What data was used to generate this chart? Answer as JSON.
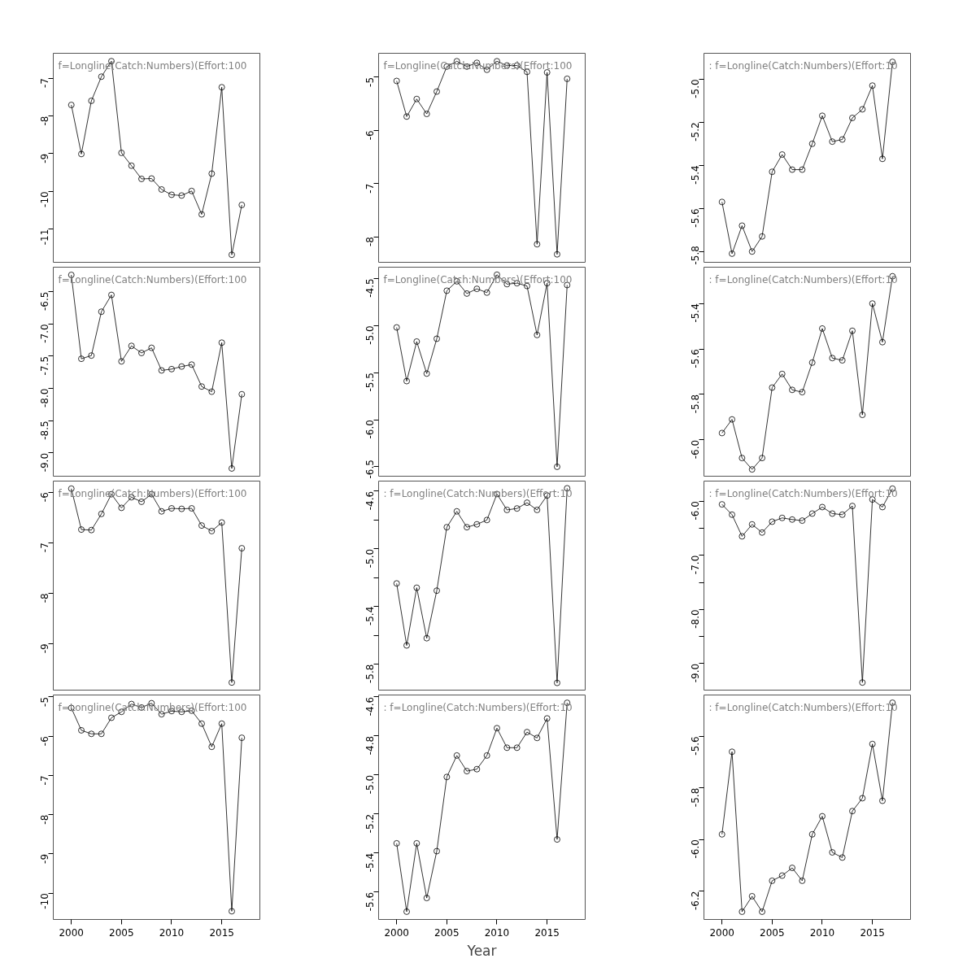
{
  "chart_data": [
    {
      "type": "line",
      "x": [
        2000,
        2001,
        2002,
        2003,
        2004,
        2005,
        2006,
        2007,
        2008,
        2009,
        2010,
        2011,
        2012,
        2013,
        2014,
        2015,
        2016,
        2017
      ],
      "series": [
        {
          "color": "#000000",
          "values": [
            -7.71,
            -9.01,
            -7.6,
            -6.96,
            -6.55,
            -8.98,
            -9.32,
            -9.67,
            -9.66,
            -9.95,
            -10.09,
            -10.11,
            -9.99,
            -10.61,
            -9.53,
            -7.24,
            -11.68,
            -10.36
          ]
        }
      ],
      "marker": "circle",
      "xlim": [
        1998.2,
        2018.8
      ],
      "ylim": [
        -11.88,
        -6.34
      ],
      "xticks": [
        2000,
        2005,
        2010,
        2015
      ],
      "yticks": [
        -7,
        -8,
        -9,
        -10,
        -11
      ],
      "tick_labels": "y",
      "annotations": [
        "f=Longline(Catch:Numbers)(Effort:100"
      ]
    },
    {
      "type": "line",
      "x": [
        2000,
        2001,
        2002,
        2003,
        2004,
        2005,
        2006,
        2007,
        2008,
        2009,
        2010,
        2011,
        2012,
        2013,
        2014,
        2015,
        2016,
        2017
      ],
      "series": [
        {
          "color": "#000000",
          "values": [
            -5.07,
            -5.74,
            -5.41,
            -5.69,
            -5.27,
            -4.8,
            -4.7,
            -4.8,
            -4.73,
            -4.86,
            -4.7,
            -4.78,
            -4.78,
            -4.9,
            -8.14,
            -4.91,
            -8.33,
            -5.03
          ]
        }
      ],
      "marker": "circle",
      "xlim": [
        1998.2,
        2018.8
      ],
      "ylim": [
        -8.48,
        -4.55
      ],
      "xticks": [
        2000,
        2005,
        2010,
        2015
      ],
      "yticks": [
        -5,
        -6,
        -7,
        -8
      ],
      "tick_labels": "y",
      "annotations": [
        "f=Longline(Catch:Numbers)(Effort:100"
      ]
    },
    {
      "type": "line",
      "x": [
        2000,
        2001,
        2002,
        2003,
        2004,
        2005,
        2006,
        2007,
        2008,
        2009,
        2010,
        2011,
        2012,
        2013,
        2014,
        2015,
        2016,
        2017
      ],
      "series": [
        {
          "color": "#000000",
          "values": [
            -5.57,
            -5.81,
            -5.68,
            -5.8,
            -5.73,
            -5.43,
            -5.35,
            -5.42,
            -5.42,
            -5.3,
            -5.17,
            -5.29,
            -5.28,
            -5.18,
            -5.14,
            -5.03,
            -5.37,
            -4.92
          ]
        }
      ],
      "marker": "circle",
      "xlim": [
        1998.2,
        2018.8
      ],
      "ylim": [
        -5.85,
        -4.88
      ],
      "xticks": [
        2000,
        2005,
        2010,
        2015
      ],
      "yticks": [
        {
          "value": -5.0,
          "label": "-5.0"
        },
        -5.2,
        -5.4,
        -5.6,
        -5.8
      ],
      "tick_labels": "y",
      "annotations": [
        ":  f=Longline(Catch:Numbers)(Effort:10"
      ]
    },
    {
      "type": "line",
      "x": [
        2000,
        2001,
        2002,
        2003,
        2004,
        2005,
        2006,
        2007,
        2008,
        2009,
        2010,
        2011,
        2012,
        2013,
        2014,
        2015,
        2016,
        2017
      ],
      "series": [
        {
          "color": "#000000",
          "values": [
            -6.24,
            -7.54,
            -7.49,
            -6.81,
            -6.55,
            -7.58,
            -7.34,
            -7.45,
            -7.37,
            -7.72,
            -7.7,
            -7.66,
            -7.63,
            -7.97,
            -8.05,
            -7.29,
            -9.24,
            -8.09
          ]
        }
      ],
      "marker": "circle",
      "xlim": [
        1998.2,
        2018.8
      ],
      "ylim": [
        -9.36,
        -6.12
      ],
      "xticks": [
        2000,
        2005,
        2010,
        2015
      ],
      "yticks": [
        -6.5,
        {
          "value": -7.0,
          "label": "-7.0"
        },
        -7.5,
        {
          "value": -8.0,
          "label": "-8.0"
        },
        -8.5,
        {
          "value": -9.0,
          "label": "-9.0"
        }
      ],
      "tick_labels": "y",
      "annotations": [
        "f=Longline(Catch:Numbers)(Effort:100"
      ]
    },
    {
      "type": "line",
      "x": [
        2000,
        2001,
        2002,
        2003,
        2004,
        2005,
        2006,
        2007,
        2008,
        2009,
        2010,
        2011,
        2012,
        2013,
        2014,
        2015,
        2016,
        2017
      ],
      "series": [
        {
          "color": "#000000",
          "values": [
            -5.02,
            -5.59,
            -5.17,
            -5.51,
            -5.14,
            -4.63,
            -4.53,
            -4.66,
            -4.61,
            -4.65,
            -4.46,
            -4.56,
            -4.55,
            -4.58,
            -5.1,
            -4.55,
            -6.5,
            -4.57
          ]
        }
      ],
      "marker": "circle",
      "xlim": [
        1998.2,
        2018.8
      ],
      "ylim": [
        -6.6,
        -4.38
      ],
      "xticks": [
        2000,
        2005,
        2010,
        2015
      ],
      "yticks": [
        -4.5,
        {
          "value": -5.0,
          "label": "-5.0"
        },
        -5.5,
        {
          "value": -6.0,
          "label": "-6.0"
        },
        -6.5
      ],
      "tick_labels": "y",
      "annotations": [
        "f=Longline(Catch:Numbers)(Effort:100"
      ]
    },
    {
      "type": "line",
      "x": [
        2000,
        2001,
        2002,
        2003,
        2004,
        2005,
        2006,
        2007,
        2008,
        2009,
        2010,
        2011,
        2012,
        2013,
        2014,
        2015,
        2016,
        2017
      ],
      "series": [
        {
          "color": "#000000",
          "values": [
            -5.97,
            -5.91,
            -6.08,
            -6.13,
            -6.08,
            -5.77,
            -5.71,
            -5.78,
            -5.79,
            -5.66,
            -5.51,
            -5.64,
            -5.65,
            -5.52,
            -5.89,
            -5.4,
            -5.57,
            -5.28
          ]
        }
      ],
      "marker": "circle",
      "xlim": [
        1998.2,
        2018.8
      ],
      "ylim": [
        -6.16,
        -5.24
      ],
      "xticks": [
        2000,
        2005,
        2010,
        2015
      ],
      "yticks": [
        -5.4,
        -5.6,
        -5.8,
        {
          "value": -6.0,
          "label": "-6.0"
        }
      ],
      "tick_labels": "y",
      "annotations": [
        ":  f=Longline(Catch:Numbers)(Effort:10"
      ]
    },
    {
      "type": "line",
      "x": [
        2000,
        2001,
        2002,
        2003,
        2004,
        2005,
        2006,
        2007,
        2008,
        2009,
        2010,
        2011,
        2012,
        2013,
        2014,
        2015,
        2016,
        2017
      ],
      "series": [
        {
          "color": "#000000",
          "values": [
            -5.93,
            -6.74,
            -6.75,
            -6.43,
            -6.04,
            -6.31,
            -6.1,
            -6.19,
            -6.04,
            -6.38,
            -6.32,
            -6.33,
            -6.32,
            -6.66,
            -6.77,
            -6.6,
            -9.77,
            -7.11
          ]
        }
      ],
      "marker": "circle",
      "xlim": [
        1998.2,
        2018.8
      ],
      "ylim": [
        -9.92,
        -5.78
      ],
      "xticks": [
        2000,
        2005,
        2010,
        2015
      ],
      "yticks": [
        -6,
        -7,
        -8,
        -9
      ],
      "tick_labels": "y",
      "annotations": [
        "f=Longline(Catch:Numbers)(Effort:100"
      ]
    },
    {
      "type": "line",
      "x": [
        2000,
        2001,
        2002,
        2003,
        2004,
        2005,
        2006,
        2007,
        2008,
        2009,
        2010,
        2011,
        2012,
        2013,
        2014,
        2015,
        2016,
        2017
      ],
      "series": [
        {
          "color": "#000000",
          "values": [
            -5.24,
            -5.67,
            -5.27,
            -5.62,
            -5.29,
            -4.85,
            -4.74,
            -4.85,
            -4.83,
            -4.8,
            -4.62,
            -4.73,
            -4.72,
            -4.68,
            -4.73,
            -4.63,
            -5.93,
            -4.58
          ]
        }
      ],
      "marker": "circle",
      "xlim": [
        1998.2,
        2018.8
      ],
      "ylim": [
        -5.98,
        -4.53
      ],
      "xticks": [
        2000,
        2005,
        2010,
        2015
      ],
      "yticks": [
        -4.6,
        {
          "value": -4.8,
          "label": null
        },
        {
          "value": -5.0,
          "label": "-5.0"
        },
        {
          "value": -5.2,
          "label": null
        },
        -5.4,
        {
          "value": -5.6,
          "label": null
        },
        -5.8
      ],
      "tick_labels": "y",
      "annotations": [
        ":  f=Longline(Catch:Numbers)(Effort:10"
      ]
    },
    {
      "type": "line",
      "x": [
        2000,
        2001,
        2002,
        2003,
        2004,
        2005,
        2006,
        2007,
        2008,
        2009,
        2010,
        2011,
        2012,
        2013,
        2014,
        2015,
        2016,
        2017
      ],
      "series": [
        {
          "color": "#000000",
          "values": [
            -6.06,
            -6.25,
            -6.65,
            -6.43,
            -6.58,
            -6.38,
            -6.31,
            -6.34,
            -6.36,
            -6.23,
            -6.11,
            -6.23,
            -6.25,
            -6.09,
            -9.35,
            -5.97,
            -6.11,
            -5.77
          ]
        }
      ],
      "marker": "circle",
      "xlim": [
        1998.2,
        2018.8
      ],
      "ylim": [
        -9.49,
        -5.63
      ],
      "xticks": [
        2000,
        2005,
        2010,
        2015
      ],
      "yticks": [
        {
          "value": -6.0,
          "label": "-6.0"
        },
        {
          "value": -6.5,
          "label": null
        },
        {
          "value": -7.0,
          "label": "-7.0"
        },
        {
          "value": -7.5,
          "label": null
        },
        {
          "value": -8.0,
          "label": "-8.0"
        },
        {
          "value": -8.5,
          "label": null
        },
        {
          "value": -9.0,
          "label": "-9.0"
        }
      ],
      "tick_labels": "y",
      "annotations": [
        ":  f=Longline(Catch:Numbers)(Effort:10"
      ]
    },
    {
      "type": "line",
      "x": [
        2000,
        2001,
        2002,
        2003,
        2004,
        2005,
        2006,
        2007,
        2008,
        2009,
        2010,
        2011,
        2012,
        2013,
        2014,
        2015,
        2016,
        2017
      ],
      "series": [
        {
          "color": "#000000",
          "values": [
            -5.28,
            -5.85,
            -5.94,
            -5.94,
            -5.53,
            -5.38,
            -5.18,
            -5.27,
            -5.16,
            -5.44,
            -5.36,
            -5.38,
            -5.35,
            -5.68,
            -6.27,
            -5.68,
            -10.46,
            -6.04
          ]
        }
      ],
      "marker": "circle",
      "xlim": [
        1998.2,
        2018.8
      ],
      "ylim": [
        -10.67,
        -4.95
      ],
      "xticks": [
        2000,
        2005,
        2010,
        2015
      ],
      "yticks": [
        -5,
        -6,
        -7,
        -8,
        -9,
        -10
      ],
      "annotations": [
        "f=Longline(Catch:Numbers)(Effort:100"
      ]
    },
    {
      "type": "line",
      "x": [
        2000,
        2001,
        2002,
        2003,
        2004,
        2005,
        2006,
        2007,
        2008,
        2009,
        2010,
        2011,
        2012,
        2013,
        2014,
        2015,
        2016,
        2017
      ],
      "series": [
        {
          "color": "#000000",
          "values": [
            -5.35,
            -5.7,
            -5.35,
            -5.63,
            -5.39,
            -5.01,
            -4.9,
            -4.98,
            -4.97,
            -4.9,
            -4.76,
            -4.86,
            -4.86,
            -4.78,
            -4.81,
            -4.71,
            -5.33,
            -4.63
          ]
        }
      ],
      "marker": "circle",
      "xlim": [
        1998.2,
        2018.8
      ],
      "ylim": [
        -5.74,
        -4.59
      ],
      "xticks": [
        2000,
        2005,
        2010,
        2015
      ],
      "yticks": [
        -4.6,
        -4.8,
        {
          "value": -5.0,
          "label": "-5.0"
        },
        -5.2,
        -5.4,
        -5.6
      ],
      "xlabel": "Year",
      "annotations": [
        ":  f=Longline(Catch:Numbers)(Effort:10"
      ]
    },
    {
      "type": "line",
      "x": [
        2000,
        2001,
        2002,
        2003,
        2004,
        2005,
        2006,
        2007,
        2008,
        2009,
        2010,
        2011,
        2012,
        2013,
        2014,
        2015,
        2016,
        2017
      ],
      "series": [
        {
          "color": "#000000",
          "values": [
            -5.98,
            -5.66,
            -6.28,
            -6.22,
            -6.28,
            -6.16,
            -6.14,
            -6.11,
            -6.16,
            -5.98,
            -5.91,
            -6.05,
            -6.07,
            -5.89,
            -5.84,
            -5.63,
            -5.85,
            -5.47
          ]
        }
      ],
      "marker": "circle",
      "xlim": [
        1998.2,
        2018.8
      ],
      "ylim": [
        -6.31,
        -5.44
      ],
      "xticks": [
        2000,
        2005,
        2010,
        2015
      ],
      "yticks": [
        -5.6,
        -5.8,
        {
          "value": -6.0,
          "label": "-6.0"
        },
        -6.2
      ],
      "annotations": [
        ":  f=Longline(Catch:Numbers)(Effort:10"
      ]
    }
  ]
}
